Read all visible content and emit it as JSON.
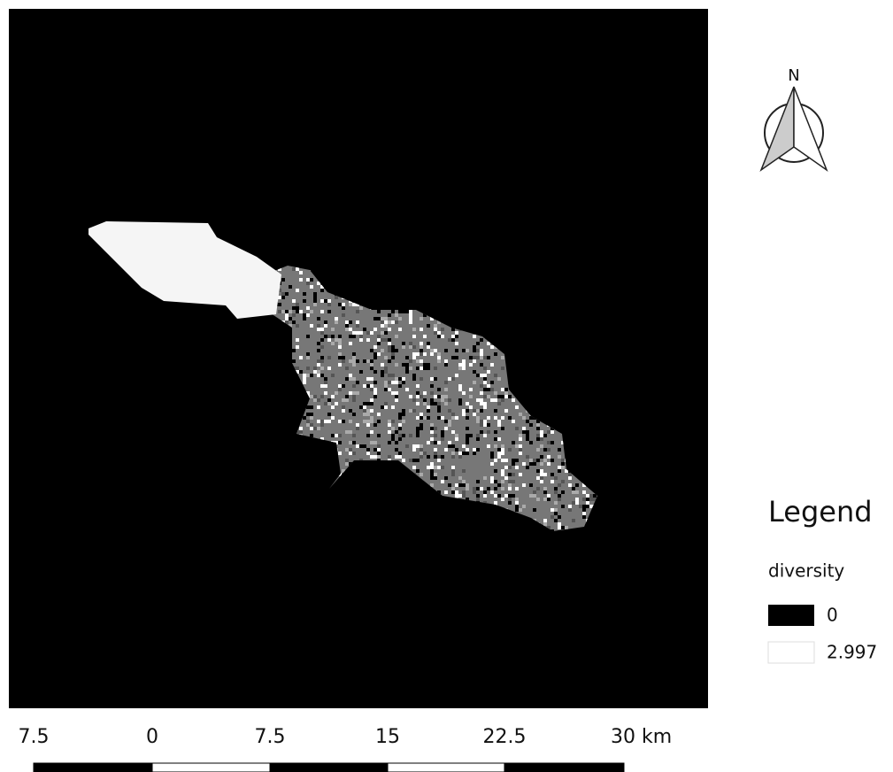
{
  "compass": {
    "label": "N"
  },
  "legend": {
    "title": "Legend",
    "layer": "diversity",
    "items": [
      {
        "label": "0"
      },
      {
        "label": "2.997"
      }
    ]
  },
  "scale_bar": {
    "labels": [
      "7.5",
      "0",
      "7.5",
      "15",
      "22.5",
      "30 km"
    ]
  }
}
